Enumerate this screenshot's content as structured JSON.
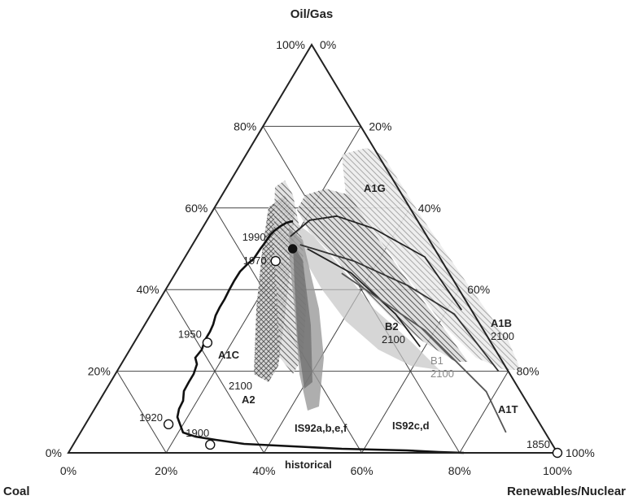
{
  "chart_data": {
    "type": "ternary",
    "vertices": {
      "top": "Oil/Gas",
      "left": "Coal",
      "right": "Renewables/Nuclear"
    },
    "edge_ticks": {
      "left_edge": [
        "100%",
        "80%",
        "60%",
        "40%",
        "20%",
        "0%"
      ],
      "right_edge": [
        "100%",
        "80%",
        "60%",
        "40%",
        "20%",
        "0%"
      ],
      "bottom_edge": [
        "0%",
        "20%",
        "40%",
        "60%",
        "80%",
        "100%"
      ]
    },
    "historical": {
      "name": "historical",
      "points": [
        {
          "year": "1850",
          "coal": 0.0,
          "oilgas": 0.0,
          "renew": 1.0,
          "label": "1850"
        },
        {
          "year": "1900",
          "coal": 0.7,
          "oilgas": 0.02,
          "renew": 0.28,
          "label": "1900"
        },
        {
          "year": "1920",
          "coal": 0.76,
          "oilgas": 0.07,
          "renew": 0.17,
          "label": "1920"
        },
        {
          "year": "1950",
          "coal": 0.58,
          "oilgas": 0.27,
          "renew": 0.15,
          "label": "1950"
        },
        {
          "year": "1970",
          "coal": 0.34,
          "oilgas": 0.47,
          "renew": 0.19,
          "label": "1970"
        },
        {
          "year": "1990",
          "coal": 0.29,
          "oilgas": 0.5,
          "renew": 0.21,
          "label": "1990"
        }
      ]
    },
    "scenario_labels": [
      "A1G",
      "A1B",
      "2100",
      "A1T",
      "B1",
      "2100",
      "B2",
      "2100",
      "A1C",
      "A2",
      "2100",
      "IS92a,b,e,f",
      "IS92c,d",
      "historical"
    ],
    "scenario_paths": [
      {
        "name": "A1G",
        "points": [
          [
            0.28,
            0.53,
            0.19
          ],
          [
            0.22,
            0.57,
            0.21
          ],
          [
            0.16,
            0.58,
            0.26
          ],
          [
            0.1,
            0.55,
            0.35
          ],
          [
            0.03,
            0.48,
            0.49
          ],
          [
            0.02,
            0.35,
            0.63
          ]
        ]
      },
      {
        "name": "A1B",
        "points": [
          [
            0.27,
            0.51,
            0.22
          ],
          [
            0.18,
            0.47,
            0.35
          ],
          [
            0.1,
            0.41,
            0.49
          ],
          [
            0.04,
            0.34,
            0.62
          ],
          [
            0.02,
            0.2,
            0.78
          ]
        ]
      },
      {
        "name": "B2",
        "points": [
          [
            0.26,
            0.5,
            0.24
          ],
          [
            0.2,
            0.44,
            0.36
          ],
          [
            0.16,
            0.34,
            0.5
          ],
          [
            0.15,
            0.26,
            0.59
          ]
        ]
      },
      {
        "name": "IS92c,d",
        "points": [
          [
            0.22,
            0.44,
            0.34
          ],
          [
            0.12,
            0.3,
            0.58
          ],
          [
            0.07,
            0.15,
            0.78
          ],
          [
            0.08,
            0.05,
            0.87
          ]
        ]
      }
    ]
  },
  "colors": {
    "lines": "#222222",
    "shade_dark": "#2a2a2a",
    "shade_mid": "#7a7a7a",
    "shade_light": "#bcbcbc"
  }
}
